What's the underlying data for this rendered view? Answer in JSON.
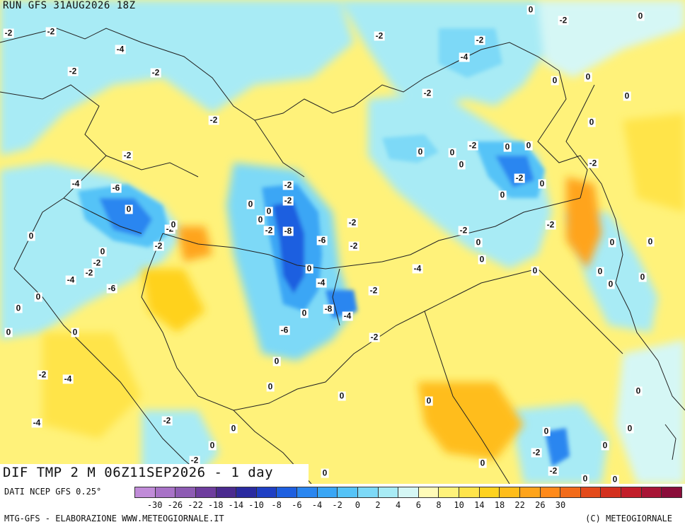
{
  "header": {
    "run_label": "RUN GFS 31AUG2026 18Z"
  },
  "map": {
    "title": "DIF TMP 2 M 06Z11SEP2026 - 1 day",
    "contour_labels": [
      "-2",
      "-2",
      "-4",
      "-2",
      "-2",
      "-2",
      "0",
      "0",
      "-2",
      "-2",
      "-4",
      "-2",
      "0",
      "0",
      "0",
      "-2",
      "-2",
      "-4",
      "-6",
      "0",
      "-2",
      "0",
      "0",
      "0",
      "-2",
      "-2",
      "-4",
      "-6",
      "-2",
      "0",
      "0",
      "0",
      "0",
      "-2",
      "-4",
      "-4",
      "-2",
      "0",
      "0",
      "-2",
      "-2",
      "-2",
      "0",
      "0",
      "0",
      "-2",
      "-8",
      "-6",
      "-2",
      "0",
      "-4",
      "-8",
      "-4",
      "0",
      "-6",
      "-2",
      "-2",
      "-2",
      "-4",
      "-2",
      "0",
      "0",
      "0",
      "0",
      "0",
      "0",
      "0",
      "0",
      "-2",
      "0",
      "0",
      "-2",
      "0",
      "-2",
      "0",
      "0",
      "0",
      "0",
      "0",
      "-2",
      "0",
      "0",
      "0",
      "0",
      "0",
      "0",
      "0",
      "-2",
      "0",
      "-2",
      "0",
      "0",
      "0",
      "0"
    ]
  },
  "legend": {
    "source": "DATI NCEP GFS 0.25°",
    "tick_labels": [
      "-30",
      "-26",
      "-22",
      "-18",
      "-14",
      "-10",
      "-8",
      "-6",
      "-4",
      "-2",
      "0",
      "2",
      "4",
      "6",
      "8",
      "10",
      "14",
      "18",
      "22",
      "26",
      "30"
    ],
    "colors": [
      "#c08bd8",
      "#a872c7",
      "#8d5bb3",
      "#6e3d9e",
      "#4a2a8f",
      "#2a2aa0",
      "#1f3fc4",
      "#1e5fe0",
      "#2a86f0",
      "#3aa6f5",
      "#55c3f7",
      "#7dd9f7",
      "#a8ebf5",
      "#d5f7f5",
      "#fffbb8",
      "#fff27a",
      "#ffe44a",
      "#ffd21e",
      "#ffbd1a",
      "#ffa41a",
      "#ff8a1a",
      "#f26b1a",
      "#e34a1a",
      "#d3301e",
      "#c21e2a",
      "#a81536",
      "#8a0d3a"
    ]
  },
  "footer": {
    "credit_left": "MTG-GFS - ELABORAZIONE WWW.METEOGIORNALE.IT",
    "credit_right": "(C) METEOGIORNALE"
  }
}
